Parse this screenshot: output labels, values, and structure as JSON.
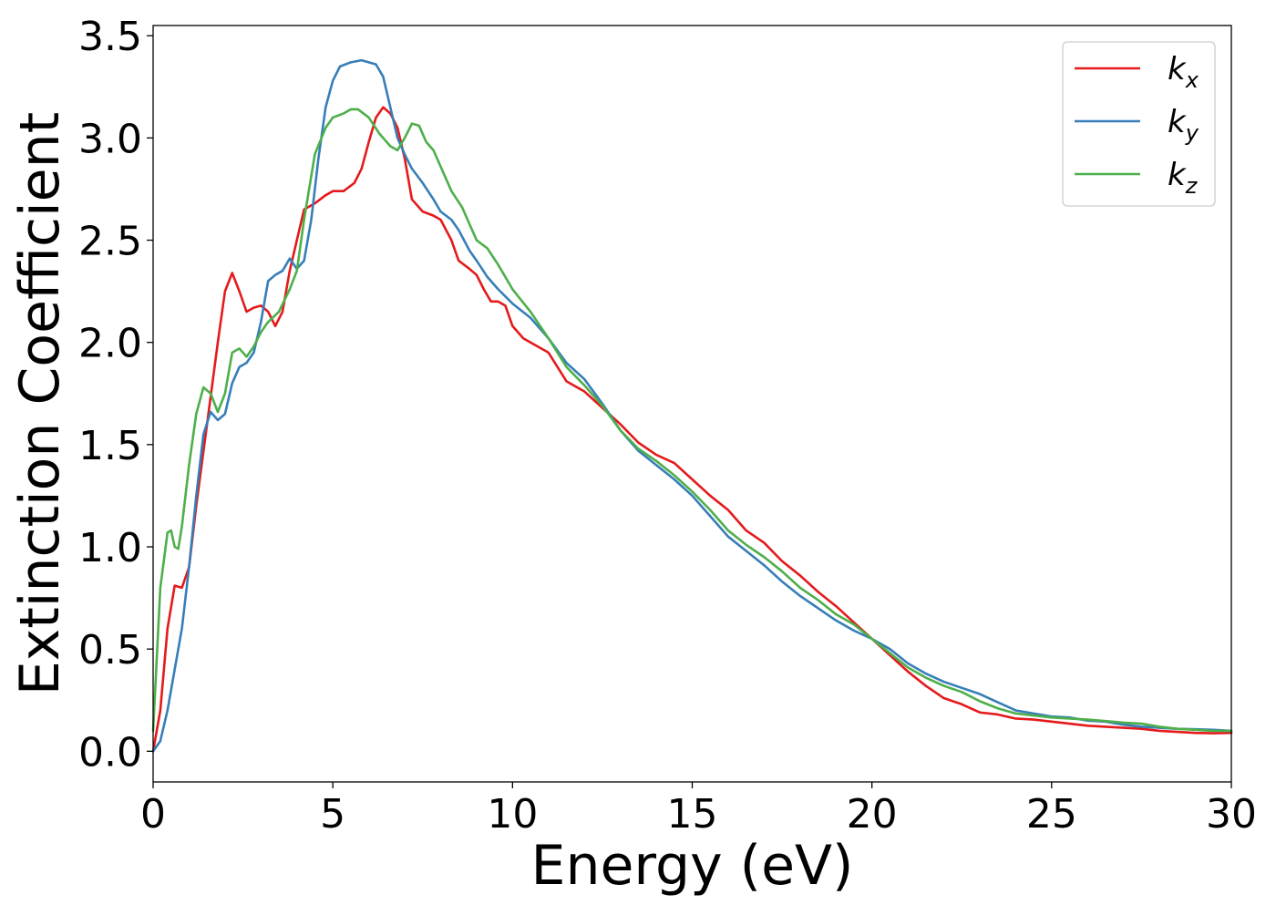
{
  "chart_data": {
    "type": "line",
    "title": "",
    "xlabel": "Energy (eV)",
    "ylabel": "Extinction Coefficient",
    "xlim": [
      0,
      30
    ],
    "ylim": [
      -0.15,
      3.55
    ],
    "xticks": [
      0,
      5,
      10,
      15,
      20,
      25,
      30
    ],
    "xtick_labels": [
      "0",
      "5",
      "10",
      "15",
      "20",
      "25",
      "30"
    ],
    "yticks": [
      0.0,
      0.5,
      1.0,
      1.5,
      2.0,
      2.5,
      3.0,
      3.5
    ],
    "ytick_labels": [
      "0.0",
      "0.5",
      "1.0",
      "1.5",
      "2.0",
      "2.5",
      "3.0",
      "3.5"
    ],
    "grid": false,
    "legend_position": "top-right",
    "series": [
      {
        "name": "k_x",
        "label_base": "k",
        "label_sub": "x",
        "color": "#e41a1c",
        "points": [
          [
            0,
            0.0
          ],
          [
            0.2,
            0.2
          ],
          [
            0.4,
            0.6
          ],
          [
            0.6,
            0.81
          ],
          [
            0.8,
            0.8
          ],
          [
            1.0,
            0.9
          ],
          [
            1.2,
            1.2
          ],
          [
            1.5,
            1.6
          ],
          [
            1.8,
            2.0
          ],
          [
            2.0,
            2.25
          ],
          [
            2.2,
            2.34
          ],
          [
            2.4,
            2.25
          ],
          [
            2.6,
            2.15
          ],
          [
            2.8,
            2.17
          ],
          [
            3.0,
            2.18
          ],
          [
            3.2,
            2.15
          ],
          [
            3.4,
            2.08
          ],
          [
            3.6,
            2.15
          ],
          [
            3.8,
            2.35
          ],
          [
            4.0,
            2.5
          ],
          [
            4.2,
            2.65
          ],
          [
            4.5,
            2.68
          ],
          [
            4.8,
            2.72
          ],
          [
            5.0,
            2.74
          ],
          [
            5.3,
            2.74
          ],
          [
            5.6,
            2.78
          ],
          [
            5.8,
            2.85
          ],
          [
            6.0,
            2.98
          ],
          [
            6.2,
            3.1
          ],
          [
            6.4,
            3.15
          ],
          [
            6.6,
            3.12
          ],
          [
            6.8,
            3.05
          ],
          [
            7.0,
            2.9
          ],
          [
            7.2,
            2.7
          ],
          [
            7.5,
            2.64
          ],
          [
            7.8,
            2.62
          ],
          [
            8.0,
            2.6
          ],
          [
            8.3,
            2.5
          ],
          [
            8.5,
            2.4
          ],
          [
            8.8,
            2.36
          ],
          [
            9.0,
            2.33
          ],
          [
            9.2,
            2.26
          ],
          [
            9.4,
            2.2
          ],
          [
            9.6,
            2.2
          ],
          [
            9.8,
            2.18
          ],
          [
            10.0,
            2.08
          ],
          [
            10.3,
            2.02
          ],
          [
            10.6,
            1.99
          ],
          [
            11.0,
            1.95
          ],
          [
            11.5,
            1.81
          ],
          [
            12.0,
            1.76
          ],
          [
            12.5,
            1.68
          ],
          [
            13.0,
            1.6
          ],
          [
            13.5,
            1.51
          ],
          [
            14.0,
            1.45
          ],
          [
            14.5,
            1.41
          ],
          [
            15.0,
            1.33
          ],
          [
            15.5,
            1.25
          ],
          [
            16.0,
            1.18
          ],
          [
            16.5,
            1.08
          ],
          [
            17.0,
            1.02
          ],
          [
            17.5,
            0.93
          ],
          [
            18.0,
            0.86
          ],
          [
            18.5,
            0.78
          ],
          [
            19.0,
            0.71
          ],
          [
            19.5,
            0.63
          ],
          [
            20.0,
            0.55
          ],
          [
            20.5,
            0.47
          ],
          [
            21.0,
            0.39
          ],
          [
            21.5,
            0.32
          ],
          [
            22.0,
            0.26
          ],
          [
            22.5,
            0.23
          ],
          [
            23.0,
            0.19
          ],
          [
            23.5,
            0.18
          ],
          [
            24.0,
            0.16
          ],
          [
            24.5,
            0.155
          ],
          [
            25.0,
            0.145
          ],
          [
            25.5,
            0.135
          ],
          [
            26.0,
            0.125
          ],
          [
            26.5,
            0.12
          ],
          [
            27.0,
            0.115
          ],
          [
            27.5,
            0.11
          ],
          [
            28.0,
            0.1
          ],
          [
            28.5,
            0.095
          ],
          [
            29.0,
            0.09
          ],
          [
            29.5,
            0.088
          ],
          [
            30.0,
            0.09
          ]
        ]
      },
      {
        "name": "k_y",
        "label_base": "k",
        "label_sub": "y",
        "color": "#377eb8",
        "points": [
          [
            0,
            0.0
          ],
          [
            0.2,
            0.05
          ],
          [
            0.4,
            0.2
          ],
          [
            0.6,
            0.4
          ],
          [
            0.8,
            0.6
          ],
          [
            1.0,
            0.9
          ],
          [
            1.2,
            1.25
          ],
          [
            1.4,
            1.55
          ],
          [
            1.6,
            1.66
          ],
          [
            1.8,
            1.62
          ],
          [
            2.0,
            1.65
          ],
          [
            2.2,
            1.8
          ],
          [
            2.4,
            1.88
          ],
          [
            2.6,
            1.9
          ],
          [
            2.8,
            1.95
          ],
          [
            3.0,
            2.1
          ],
          [
            3.2,
            2.3
          ],
          [
            3.4,
            2.33
          ],
          [
            3.6,
            2.35
          ],
          [
            3.8,
            2.41
          ],
          [
            4.0,
            2.36
          ],
          [
            4.2,
            2.4
          ],
          [
            4.4,
            2.6
          ],
          [
            4.6,
            2.9
          ],
          [
            4.8,
            3.15
          ],
          [
            5.0,
            3.28
          ],
          [
            5.2,
            3.35
          ],
          [
            5.5,
            3.37
          ],
          [
            5.8,
            3.38
          ],
          [
            6.0,
            3.37
          ],
          [
            6.2,
            3.36
          ],
          [
            6.4,
            3.3
          ],
          [
            6.6,
            3.15
          ],
          [
            6.8,
            3.0
          ],
          [
            7.0,
            2.92
          ],
          [
            7.2,
            2.85
          ],
          [
            7.5,
            2.78
          ],
          [
            7.8,
            2.7
          ],
          [
            8.0,
            2.64
          ],
          [
            8.3,
            2.6
          ],
          [
            8.5,
            2.55
          ],
          [
            8.8,
            2.45
          ],
          [
            9.0,
            2.4
          ],
          [
            9.3,
            2.32
          ],
          [
            9.6,
            2.26
          ],
          [
            10.0,
            2.19
          ],
          [
            10.5,
            2.12
          ],
          [
            11.0,
            2.02
          ],
          [
            11.5,
            1.9
          ],
          [
            12.0,
            1.82
          ],
          [
            12.5,
            1.7
          ],
          [
            13.0,
            1.57
          ],
          [
            13.5,
            1.47
          ],
          [
            14.0,
            1.4
          ],
          [
            14.5,
            1.33
          ],
          [
            15.0,
            1.25
          ],
          [
            15.5,
            1.15
          ],
          [
            16.0,
            1.05
          ],
          [
            16.5,
            0.98
          ],
          [
            17.0,
            0.91
          ],
          [
            17.5,
            0.83
          ],
          [
            18.0,
            0.76
          ],
          [
            18.5,
            0.7
          ],
          [
            19.0,
            0.64
          ],
          [
            19.5,
            0.59
          ],
          [
            20.0,
            0.55
          ],
          [
            20.5,
            0.5
          ],
          [
            21.0,
            0.43
          ],
          [
            21.5,
            0.38
          ],
          [
            22.0,
            0.34
          ],
          [
            22.5,
            0.31
          ],
          [
            23.0,
            0.28
          ],
          [
            23.5,
            0.24
          ],
          [
            24.0,
            0.2
          ],
          [
            24.5,
            0.185
          ],
          [
            25.0,
            0.17
          ],
          [
            25.5,
            0.165
          ],
          [
            26.0,
            0.15
          ],
          [
            26.5,
            0.145
          ],
          [
            27.0,
            0.13
          ],
          [
            27.5,
            0.12
          ],
          [
            28.0,
            0.115
          ],
          [
            28.5,
            0.11
          ],
          [
            29.0,
            0.108
          ],
          [
            29.5,
            0.105
          ],
          [
            30.0,
            0.1
          ]
        ]
      },
      {
        "name": "k_z",
        "label_base": "k",
        "label_sub": "z",
        "color": "#4daf4a",
        "points": [
          [
            0,
            0.1
          ],
          [
            0.2,
            0.8
          ],
          [
            0.4,
            1.07
          ],
          [
            0.5,
            1.08
          ],
          [
            0.6,
            1.0
          ],
          [
            0.7,
            0.99
          ],
          [
            0.8,
            1.1
          ],
          [
            1.0,
            1.4
          ],
          [
            1.2,
            1.65
          ],
          [
            1.4,
            1.78
          ],
          [
            1.6,
            1.75
          ],
          [
            1.8,
            1.66
          ],
          [
            2.0,
            1.75
          ],
          [
            2.2,
            1.95
          ],
          [
            2.4,
            1.97
          ],
          [
            2.6,
            1.93
          ],
          [
            2.8,
            1.98
          ],
          [
            3.0,
            2.05
          ],
          [
            3.2,
            2.1
          ],
          [
            3.5,
            2.15
          ],
          [
            3.8,
            2.26
          ],
          [
            4.0,
            2.35
          ],
          [
            4.2,
            2.6
          ],
          [
            4.5,
            2.92
          ],
          [
            4.8,
            3.05
          ],
          [
            5.0,
            3.1
          ],
          [
            5.3,
            3.12
          ],
          [
            5.5,
            3.14
          ],
          [
            5.7,
            3.14
          ],
          [
            6.0,
            3.1
          ],
          [
            6.3,
            3.02
          ],
          [
            6.6,
            2.96
          ],
          [
            6.8,
            2.94
          ],
          [
            7.0,
            3.0
          ],
          [
            7.2,
            3.07
          ],
          [
            7.4,
            3.06
          ],
          [
            7.6,
            2.98
          ],
          [
            7.8,
            2.94
          ],
          [
            8.0,
            2.86
          ],
          [
            8.3,
            2.74
          ],
          [
            8.6,
            2.66
          ],
          [
            9.0,
            2.5
          ],
          [
            9.3,
            2.46
          ],
          [
            9.6,
            2.38
          ],
          [
            10.0,
            2.26
          ],
          [
            10.5,
            2.15
          ],
          [
            11.0,
            2.02
          ],
          [
            11.5,
            1.88
          ],
          [
            12.0,
            1.79
          ],
          [
            12.5,
            1.69
          ],
          [
            13.0,
            1.57
          ],
          [
            13.5,
            1.48
          ],
          [
            14.0,
            1.42
          ],
          [
            14.5,
            1.35
          ],
          [
            15.0,
            1.27
          ],
          [
            15.5,
            1.18
          ],
          [
            16.0,
            1.08
          ],
          [
            16.5,
            1.01
          ],
          [
            17.0,
            0.95
          ],
          [
            17.5,
            0.88
          ],
          [
            18.0,
            0.8
          ],
          [
            18.5,
            0.74
          ],
          [
            19.0,
            0.67
          ],
          [
            19.5,
            0.62
          ],
          [
            20.0,
            0.55
          ],
          [
            20.5,
            0.48
          ],
          [
            21.0,
            0.41
          ],
          [
            21.5,
            0.36
          ],
          [
            22.0,
            0.32
          ],
          [
            22.5,
            0.29
          ],
          [
            23.0,
            0.245
          ],
          [
            23.5,
            0.21
          ],
          [
            24.0,
            0.185
          ],
          [
            24.5,
            0.175
          ],
          [
            25.0,
            0.165
          ],
          [
            25.5,
            0.16
          ],
          [
            26.0,
            0.155
          ],
          [
            26.5,
            0.148
          ],
          [
            27.0,
            0.14
          ],
          [
            27.5,
            0.135
          ],
          [
            28.0,
            0.12
          ],
          [
            28.5,
            0.11
          ],
          [
            29.0,
            0.105
          ],
          [
            29.5,
            0.1
          ],
          [
            30.0,
            0.1
          ]
        ]
      }
    ]
  }
}
